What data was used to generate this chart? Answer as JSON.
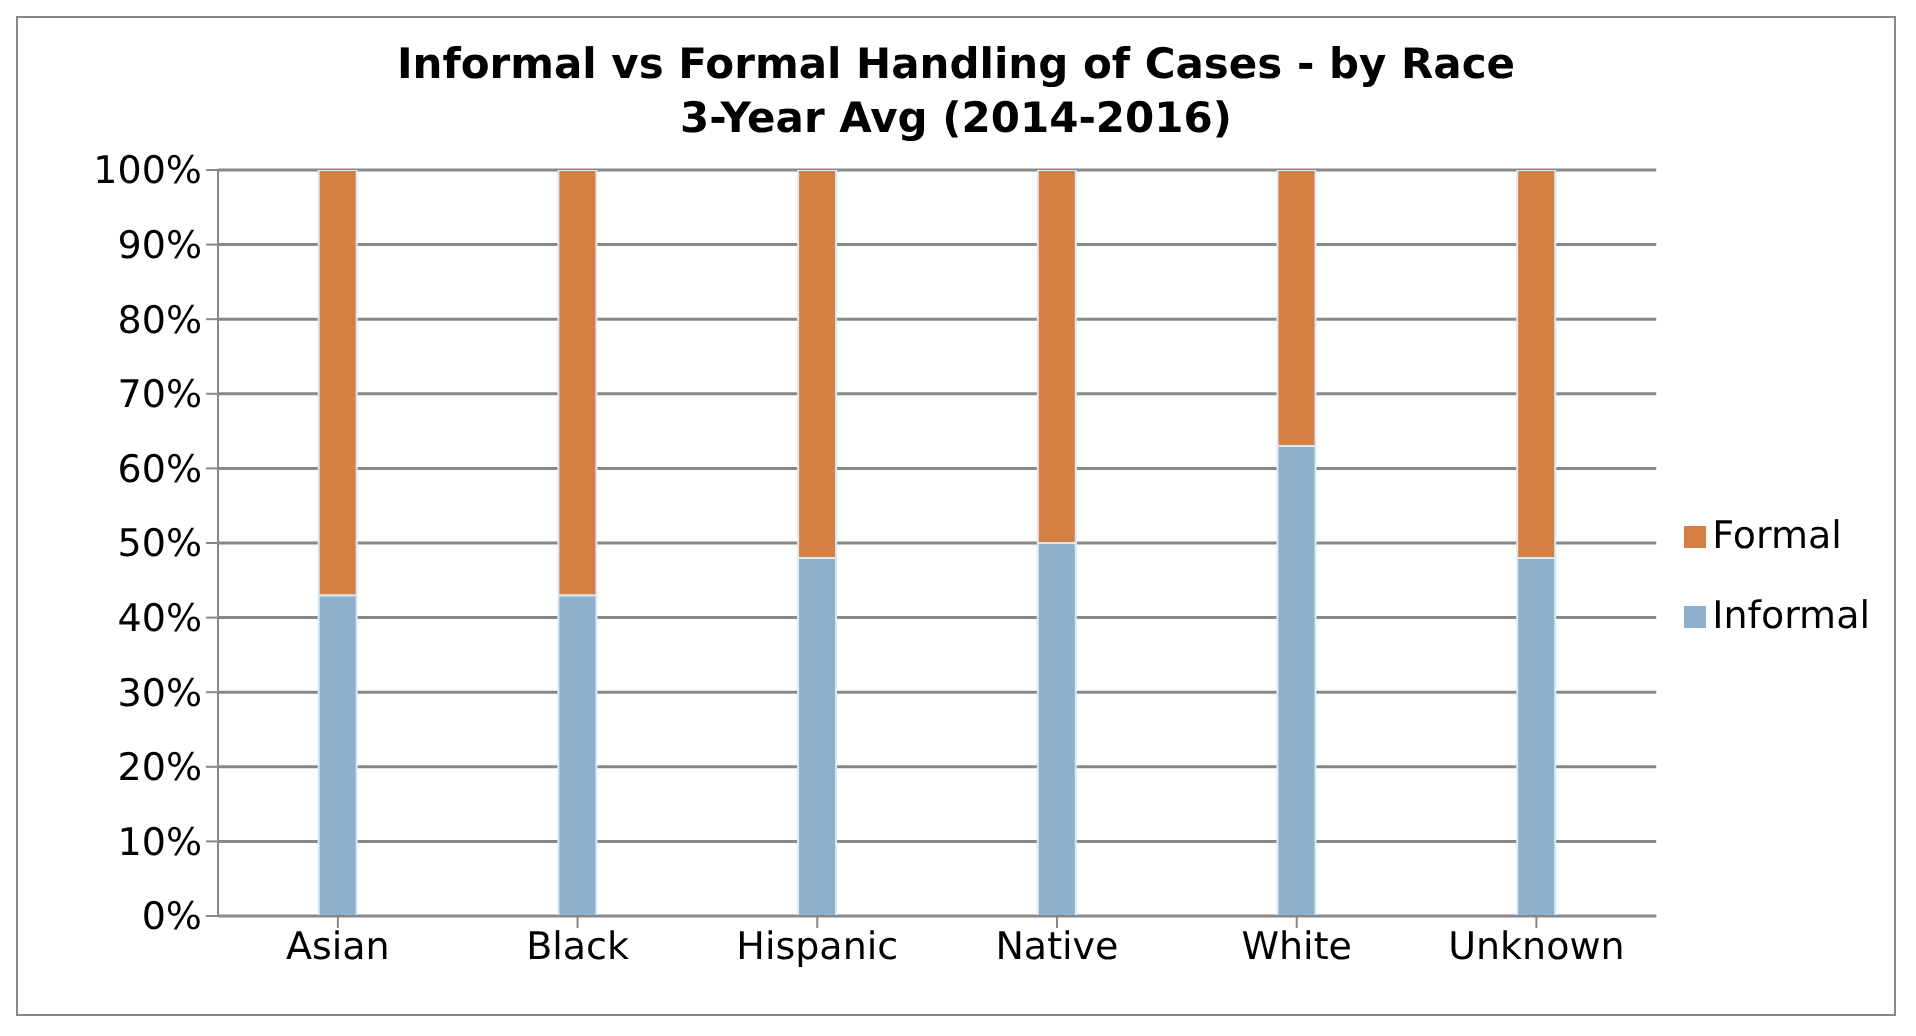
{
  "chart_data": {
    "type": "bar",
    "stacked": true,
    "title": "Informal vs Formal Handling of Cases - by Race",
    "subtitle": "3-Year Avg (2014-2016)",
    "categories": [
      "Asian",
      "Black",
      "Hispanic",
      "Native",
      "White",
      "Unknown"
    ],
    "series": [
      {
        "name": "Informal",
        "color": "#8eb0cc",
        "values": [
          43,
          43,
          48,
          50,
          63,
          48
        ]
      },
      {
        "name": "Formal",
        "color": "#d67f45",
        "values": [
          57,
          57,
          52,
          50,
          37,
          52
        ]
      }
    ],
    "ylim": [
      0,
      100
    ],
    "yticks": [
      {
        "value": 0,
        "label": "0%"
      },
      {
        "value": 10,
        "label": "10%"
      },
      {
        "value": 20,
        "label": "20%"
      },
      {
        "value": 30,
        "label": "30%"
      },
      {
        "value": 40,
        "label": "40%"
      },
      {
        "value": 50,
        "label": "50%"
      },
      {
        "value": 60,
        "label": "60%"
      },
      {
        "value": 70,
        "label": "70%"
      },
      {
        "value": 80,
        "label": "80%"
      },
      {
        "value": 90,
        "label": "90%"
      },
      {
        "value": 100,
        "label": "100%"
      }
    ],
    "grid": "y",
    "legend": "right"
  }
}
